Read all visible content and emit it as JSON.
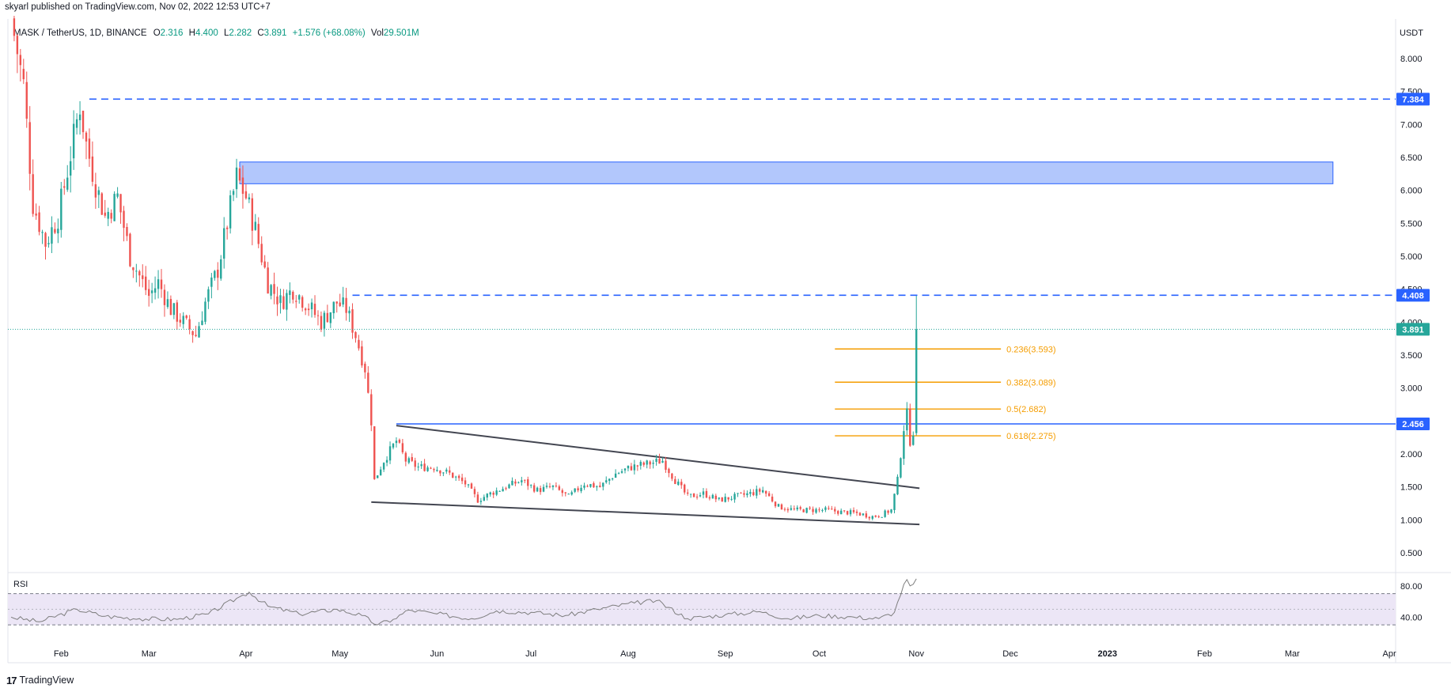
{
  "header": {
    "published": "skyarl published on TradingView.com, Nov 02, 2022 12:53 UTC+7"
  },
  "footer": {
    "brand": "TradingView",
    "logo_icon": "tradingview-logo-icon"
  },
  "legend": {
    "symbol": "MASK / TetherUS, 1D, BINANCE",
    "o_label": "O",
    "o_value": "2.316",
    "h_label": "H",
    "h_value": "4.400",
    "l_label": "L",
    "l_value": "2.282",
    "c_label": "C",
    "c_value": "3.891",
    "change": "+1.576 (+68.08%)",
    "vol_label": "Vol",
    "vol_value": "29.501M"
  },
  "colors": {
    "up": "#26a69a",
    "down": "#ef5350",
    "level_line": "#2962ff",
    "fib": "#f59d00",
    "trendline": "#434651",
    "zone_fill": "#a4bdfb",
    "price_tag": "#26a69a",
    "rsi_line": "#7e7e7e",
    "rsi_band": "#ece6f6"
  },
  "chart_data": [
    {
      "type": "candlestick",
      "currency": "USDT",
      "y_ticks": [
        "0.500",
        "1.000",
        "1.500",
        "2.000",
        "2.500",
        "3.000",
        "3.500",
        "4.000",
        "4.500",
        "5.000",
        "5.500",
        "6.000",
        "6.500",
        "7.000",
        "7.500",
        "8.000"
      ],
      "ylim": [
        0.2,
        8.6
      ],
      "x_ticks": [
        "Feb",
        "Mar",
        "Apr",
        "May",
        "Jun",
        "Jul",
        "Aug",
        "Sep",
        "Oct",
        "Nov",
        "Dec",
        "2023",
        "Feb",
        "Mar",
        "Apr"
      ],
      "x_range": [
        "2022-01-15",
        "2023-04-03"
      ],
      "last_close": 3.891,
      "price_series": [
        [
          "2022-01-16",
          8.6
        ],
        [
          "2022-01-20",
          7.6
        ],
        [
          "2022-01-23",
          5.8
        ],
        [
          "2022-01-27",
          5.2
        ],
        [
          "2022-01-31",
          5.6
        ],
        [
          "2022-02-03",
          6.3
        ],
        [
          "2022-02-07",
          7.3
        ],
        [
          "2022-02-09",
          6.7
        ],
        [
          "2022-02-12",
          6.1
        ],
        [
          "2022-02-15",
          5.6
        ],
        [
          "2022-02-19",
          5.9
        ],
        [
          "2022-02-23",
          5.0
        ],
        [
          "2022-02-26",
          4.7
        ],
        [
          "2022-03-01",
          4.4
        ],
        [
          "2022-03-04",
          4.6
        ],
        [
          "2022-03-08",
          4.2
        ],
        [
          "2022-03-12",
          4.0
        ],
        [
          "2022-03-16",
          3.8
        ],
        [
          "2022-03-19",
          4.3
        ],
        [
          "2022-03-23",
          4.8
        ],
        [
          "2022-03-26",
          5.5
        ],
        [
          "2022-03-29",
          6.2
        ],
        [
          "2022-04-01",
          5.9
        ],
        [
          "2022-04-04",
          5.4
        ],
        [
          "2022-04-08",
          4.6
        ],
        [
          "2022-04-12",
          4.3
        ],
        [
          "2022-04-16",
          4.5
        ],
        [
          "2022-04-20",
          4.3
        ],
        [
          "2022-04-25",
          4.0
        ],
        [
          "2022-04-30",
          4.3
        ],
        [
          "2022-05-03",
          4.2
        ],
        [
          "2022-05-06",
          3.8
        ],
        [
          "2022-05-09",
          3.3
        ],
        [
          "2022-05-11",
          2.5
        ],
        [
          "2022-05-12",
          1.6
        ],
        [
          "2022-05-15",
          1.9
        ],
        [
          "2022-05-19",
          2.2
        ],
        [
          "2022-05-22",
          1.9
        ],
        [
          "2022-05-26",
          1.8
        ],
        [
          "2022-05-31",
          1.8
        ],
        [
          "2022-06-05",
          1.7
        ],
        [
          "2022-06-10",
          1.55
        ],
        [
          "2022-06-14",
          1.3
        ],
        [
          "2022-06-18",
          1.4
        ],
        [
          "2022-06-23",
          1.5
        ],
        [
          "2022-06-28",
          1.6
        ],
        [
          "2022-07-03",
          1.45
        ],
        [
          "2022-07-08",
          1.5
        ],
        [
          "2022-07-13",
          1.35
        ],
        [
          "2022-07-18",
          1.55
        ],
        [
          "2022-07-23",
          1.5
        ],
        [
          "2022-07-28",
          1.7
        ],
        [
          "2022-08-02",
          1.8
        ],
        [
          "2022-08-07",
          1.85
        ],
        [
          "2022-08-12",
          1.9
        ],
        [
          "2022-08-16",
          1.6
        ],
        [
          "2022-08-20",
          1.35
        ],
        [
          "2022-08-25",
          1.4
        ],
        [
          "2022-08-30",
          1.3
        ],
        [
          "2022-09-04",
          1.35
        ],
        [
          "2022-09-09",
          1.4
        ],
        [
          "2022-09-13",
          1.45
        ],
        [
          "2022-09-18",
          1.2
        ],
        [
          "2022-09-23",
          1.15
        ],
        [
          "2022-09-28",
          1.15
        ],
        [
          "2022-10-03",
          1.15
        ],
        [
          "2022-10-08",
          1.12
        ],
        [
          "2022-10-13",
          1.1
        ],
        [
          "2022-10-18",
          1.05
        ],
        [
          "2022-10-21",
          1.08
        ],
        [
          "2022-10-24",
          1.15
        ],
        [
          "2022-10-26",
          1.6
        ],
        [
          "2022-10-28",
          2.4
        ],
        [
          "2022-10-29",
          2.6
        ],
        [
          "2022-10-30",
          2.2
        ],
        [
          "2022-10-31",
          2.35
        ],
        [
          "2022-11-01",
          3.891
        ]
      ],
      "levels": [
        {
          "price": 7.384,
          "label": "7.384",
          "style": "dashed",
          "start": "2022-02-10"
        },
        {
          "price": 4.408,
          "label": "4.408",
          "style": "dashed",
          "start": "2022-05-05"
        },
        {
          "price": 2.456,
          "label": "2.456",
          "style": "solid",
          "start": "2022-05-19"
        }
      ],
      "zone": {
        "start": "2022-03-30",
        "end": "2023-03-14",
        "low": 6.1,
        "high": 6.43
      },
      "fib_levels": [
        {
          "price": 3.593,
          "label": "0.236(3.593)"
        },
        {
          "price": 3.089,
          "label": "0.382(3.089)"
        },
        {
          "price": 2.682,
          "label": "0.5(2.682)"
        },
        {
          "price": 2.275,
          "label": "0.618(2.275)"
        }
      ],
      "fib_range": [
        "2022-10-06",
        "2022-11-28"
      ],
      "trendlines": [
        {
          "from": [
            "2022-05-19",
            2.43
          ],
          "to": [
            "2022-11-02",
            1.48
          ]
        },
        {
          "from": [
            "2022-05-11",
            1.27
          ],
          "to": [
            "2022-11-02",
            0.93
          ]
        }
      ]
    },
    {
      "type": "line",
      "title": "RSI",
      "y_ticks": [
        "40.00",
        "80.00"
      ],
      "ylim": [
        20,
        95
      ],
      "band": [
        30,
        70
      ],
      "mid": 50,
      "series": [
        [
          "2022-01-16",
          40
        ],
        [
          "2022-01-25",
          34
        ],
        [
          "2022-02-06",
          50
        ],
        [
          "2022-02-15",
          41
        ],
        [
          "2022-02-26",
          38
        ],
        [
          "2022-03-10",
          37
        ],
        [
          "2022-03-20",
          44
        ],
        [
          "2022-03-29",
          64
        ],
        [
          "2022-04-02",
          72
        ],
        [
          "2022-04-08",
          54
        ],
        [
          "2022-04-18",
          44
        ],
        [
          "2022-04-30",
          50
        ],
        [
          "2022-05-08",
          42
        ],
        [
          "2022-05-13",
          30
        ],
        [
          "2022-05-18",
          37
        ],
        [
          "2022-05-23",
          49
        ],
        [
          "2022-06-01",
          44
        ],
        [
          "2022-06-12",
          38
        ],
        [
          "2022-06-20",
          48
        ],
        [
          "2022-07-01",
          46
        ],
        [
          "2022-07-12",
          42
        ],
        [
          "2022-07-22",
          50
        ],
        [
          "2022-08-03",
          58
        ],
        [
          "2022-08-10",
          61
        ],
        [
          "2022-08-20",
          38
        ],
        [
          "2022-09-01",
          43
        ],
        [
          "2022-09-12",
          47
        ],
        [
          "2022-09-21",
          38
        ],
        [
          "2022-10-01",
          42
        ],
        [
          "2022-10-12",
          40
        ],
        [
          "2022-10-20",
          38
        ],
        [
          "2022-10-25",
          46
        ],
        [
          "2022-10-28",
          82
        ],
        [
          "2022-10-29",
          88
        ],
        [
          "2022-10-30",
          80
        ],
        [
          "2022-10-31",
          82
        ],
        [
          "2022-11-01",
          89
        ]
      ]
    }
  ]
}
